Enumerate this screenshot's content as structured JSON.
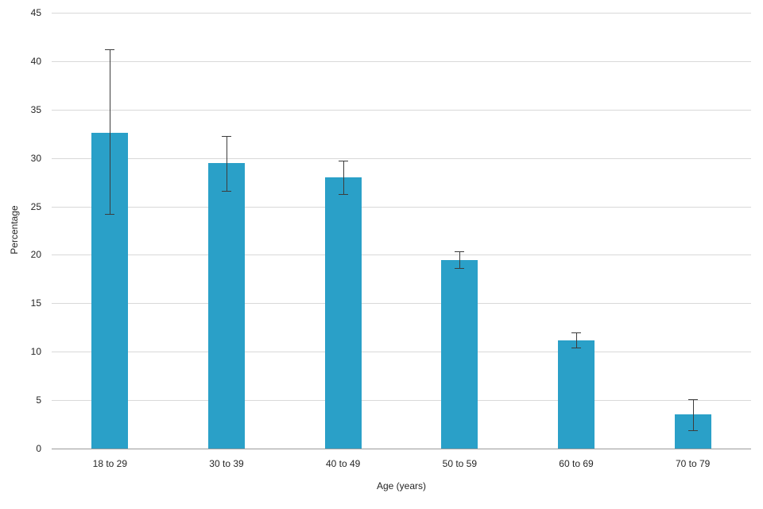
{
  "chart_data": {
    "type": "bar",
    "title": "",
    "xlabel": "Age (years)",
    "ylabel": "Percentage",
    "categories": [
      "18 to 29",
      "30 to 39",
      "40 to 49",
      "50 to 59",
      "60 to 69",
      "70 to 79"
    ],
    "values": [
      32.6,
      29.5,
      28.0,
      19.5,
      11.2,
      3.5
    ],
    "error_low": [
      24.2,
      26.6,
      26.3,
      18.6,
      10.4,
      1.9
    ],
    "error_high": [
      41.2,
      32.3,
      29.7,
      20.4,
      12.0,
      5.1
    ],
    "ylim": [
      0,
      45
    ],
    "ytick_step": 5,
    "grid": true,
    "legend": "none",
    "bar_color": "#2aa0c8",
    "error_color": "#3d3d3d",
    "gridline_color": "#d9d9d9",
    "axis_line_color": "#9b9b9b",
    "text_color": "#262626"
  }
}
